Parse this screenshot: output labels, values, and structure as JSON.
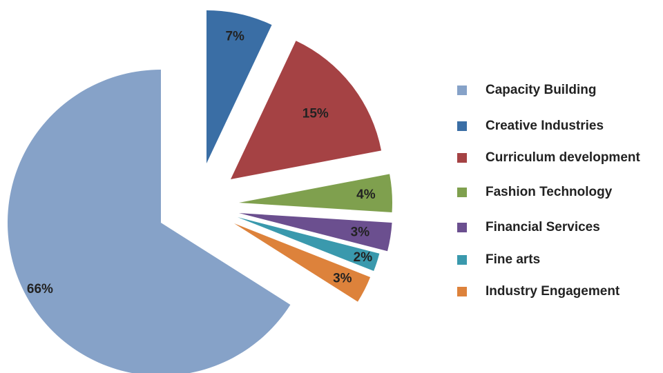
{
  "chart_data": {
    "type": "pie",
    "title": "",
    "legend_position": "right",
    "exploded": true,
    "slices": [
      {
        "name": "Capacity Building",
        "value": 66,
        "label": "66%",
        "color": "#86a2c8"
      },
      {
        "name": "Creative Industries",
        "value": 7,
        "label": "7%",
        "color": "#3a6ea5"
      },
      {
        "name": "Curriculum development",
        "value": 15,
        "label": "15%",
        "color": "#a54244"
      },
      {
        "name": "Fashion Technology",
        "value": 4,
        "label": "4%",
        "color": "#7fa04e"
      },
      {
        "name": "Financial Services",
        "value": 3,
        "label": "3%",
        "color": "#6b4f8f"
      },
      {
        "name": "Fine arts",
        "value": 2,
        "label": "2%",
        "color": "#3a99ad"
      },
      {
        "name": "Industry Engagement",
        "value": 3,
        "label": "3%",
        "color": "#dd823b"
      }
    ]
  }
}
